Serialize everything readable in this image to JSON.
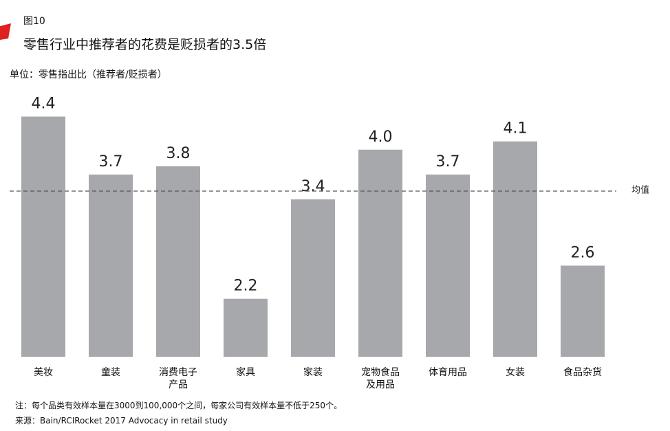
{
  "chart_data": {
    "type": "bar",
    "figure_label": "图10",
    "title": "零售行业中推荐者的花费是贬损者的3.5倍",
    "subtitle": "单位：零售指出比（推荐者/贬损者）",
    "categories": [
      "美妆",
      "童装",
      "消费电子产品",
      "家具",
      "家装",
      "宠物食品及用品",
      "体育用品",
      "女装",
      "食品杂货"
    ],
    "values": [
      4.4,
      3.7,
      3.8,
      2.2,
      3.4,
      4.0,
      3.7,
      4.1,
      2.6
    ],
    "value_labels": [
      "4.4",
      "3.7",
      "3.8",
      "2.2",
      "3.4",
      "4.0",
      "3.7",
      "4.1",
      "2.6"
    ],
    "color": "#a7a8ab",
    "ylim": [
      1.5,
      4.5
    ],
    "average": {
      "label": "均值",
      "value": 3.5
    },
    "notes": [
      "注：每个品类有效样本量在3000到100,000个之间，每家公司有效样本量不低于250个。",
      "来源：Bain/RCIRocket 2017 Advocacy in retail study"
    ]
  }
}
